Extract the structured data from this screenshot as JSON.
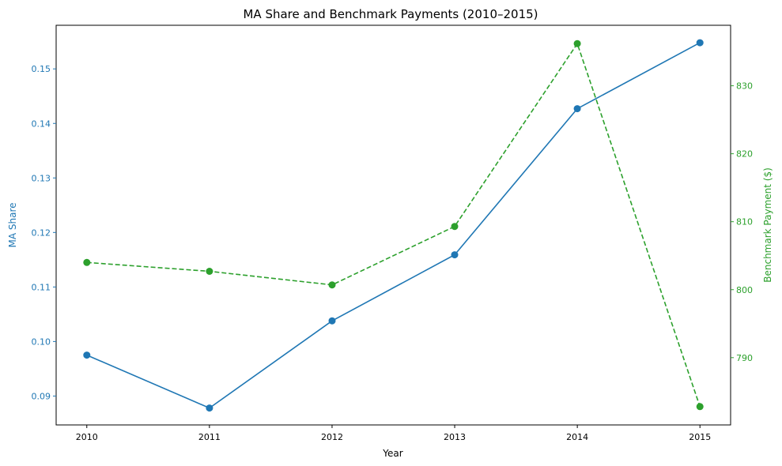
{
  "chart_data": {
    "type": "line",
    "title": "MA Share and Benchmark Payments (2010–2015)",
    "xlabel": "Year",
    "x": [
      "2010",
      "2011",
      "2012",
      "2013",
      "2014",
      "2015"
    ],
    "xlim": [
      2009.75,
      2015.25
    ],
    "grid": false,
    "legend": "none",
    "left_axis": {
      "label": "MA Share",
      "color": "#1f77b4",
      "ylim": [
        0.0847,
        0.158
      ],
      "ticks": [
        "0.09",
        "0.10",
        "0.11",
        "0.12",
        "0.13",
        "0.14",
        "0.15"
      ],
      "tick_values": [
        0.09,
        0.1,
        0.11,
        0.12,
        0.13,
        0.14,
        0.15
      ]
    },
    "right_axis": {
      "label": "Benchmark Payment ($)",
      "color": "#2ca02c",
      "ylim": [
        780.1,
        838.9
      ],
      "ticks": [
        "790",
        "800",
        "810",
        "820",
        "830"
      ],
      "tick_values": [
        790,
        800,
        810,
        820,
        830
      ]
    },
    "series": [
      {
        "axis": "left",
        "values": [
          0.0975,
          0.0878,
          0.1038,
          0.1159,
          0.1427,
          0.1548
        ],
        "color": "#1f77b4",
        "line_style": "solid",
        "marker": "circle"
      },
      {
        "axis": "right",
        "values": [
          804.0,
          802.7,
          800.7,
          809.3,
          836.2,
          782.8
        ],
        "color": "#2ca02c",
        "line_style": "dashed",
        "marker": "circle"
      }
    ]
  }
}
